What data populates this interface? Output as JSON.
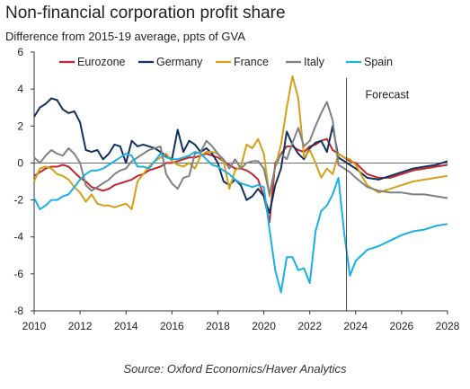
{
  "title": "Non-financial corporation profit share",
  "subtitle": "Difference from 2015-19 average, ppts of GVA",
  "source": "Source: Oxford Economics/Haver Analytics",
  "chart_data": {
    "type": "line",
    "title": "Non-financial corporation profit share",
    "subtitle": "Difference from 2015-19 average, ppts of GVA",
    "xlabel": "",
    "ylabel": "",
    "xlim": [
      2010,
      2028
    ],
    "ylim": [
      -8,
      6
    ],
    "x_ticks": [
      2010,
      2012,
      2014,
      2016,
      2018,
      2020,
      2022,
      2024,
      2026,
      2028
    ],
    "y_ticks": [
      -8,
      -6,
      -4,
      -2,
      0,
      2,
      4,
      6
    ],
    "grid": false,
    "legend_position": "top",
    "annotations": [
      {
        "text": "Forecast",
        "x": 2023.6
      }
    ],
    "series": [
      {
        "name": "Eurozone",
        "color": "#c0282d",
        "x": [
          2010,
          2010.25,
          2010.5,
          2010.75,
          2011,
          2011.25,
          2011.5,
          2011.75,
          2012,
          2012.25,
          2012.5,
          2012.75,
          2013,
          2013.25,
          2013.5,
          2013.75,
          2014,
          2014.25,
          2014.5,
          2014.75,
          2015,
          2015.25,
          2015.5,
          2015.75,
          2016,
          2016.25,
          2016.5,
          2016.75,
          2017,
          2017.25,
          2017.5,
          2017.75,
          2018,
          2018.25,
          2018.5,
          2018.75,
          2019,
          2019.25,
          2019.5,
          2019.75,
          2020,
          2020.25,
          2020.5,
          2020.75,
          2021,
          2021.25,
          2021.5,
          2021.75,
          2022,
          2022.25,
          2022.5,
          2022.75,
          2023,
          2023.25,
          2023.5,
          2023.75,
          2024,
          2024.5,
          2025,
          2025.5,
          2026,
          2026.5,
          2027,
          2027.5,
          2028
        ],
        "values": [
          -0.7,
          -0.5,
          -0.3,
          -0.2,
          -0.2,
          -0.1,
          -0.2,
          -0.5,
          -0.8,
          -1.0,
          -1.3,
          -1.4,
          -1.5,
          -1.4,
          -1.2,
          -1.1,
          -1.0,
          -0.9,
          -0.7,
          -0.6,
          -0.4,
          -0.3,
          -0.2,
          0.0,
          0.0,
          0.1,
          0.2,
          0.3,
          0.3,
          0.4,
          0.5,
          0.4,
          0.3,
          0.1,
          -0.1,
          -0.3,
          -0.3,
          -0.4,
          -0.6,
          -0.9,
          -1.8,
          -3.2,
          0.0,
          0.5,
          0.9,
          0.9,
          0.7,
          0.6,
          0.9,
          1.0,
          1.2,
          1.3,
          0.7,
          0.5,
          0.3,
          0.1,
          0.0,
          -0.6,
          -0.8,
          -0.8,
          -0.6,
          -0.4,
          -0.3,
          -0.2,
          -0.1
        ]
      },
      {
        "name": "Germany",
        "color": "#13305e",
        "x": [
          2010,
          2010.25,
          2010.5,
          2010.75,
          2011,
          2011.25,
          2011.5,
          2011.75,
          2012,
          2012.25,
          2012.5,
          2012.75,
          2013,
          2013.25,
          2013.5,
          2013.75,
          2014,
          2014.25,
          2014.5,
          2014.75,
          2015,
          2015.25,
          2015.5,
          2015.75,
          2016,
          2016.25,
          2016.5,
          2016.75,
          2017,
          2017.25,
          2017.5,
          2017.75,
          2018,
          2018.25,
          2018.5,
          2018.75,
          2019,
          2019.25,
          2019.5,
          2019.75,
          2020,
          2020.25,
          2020.5,
          2020.75,
          2021,
          2021.25,
          2021.5,
          2021.75,
          2022,
          2022.25,
          2022.5,
          2022.75,
          2023,
          2023.25,
          2023.5,
          2023.75,
          2024,
          2024.5,
          2025,
          2025.5,
          2026,
          2026.5,
          2027,
          2027.5,
          2028
        ],
        "values": [
          2.5,
          3.0,
          3.2,
          3.5,
          3.4,
          2.9,
          2.7,
          2.8,
          2.2,
          0.7,
          0.6,
          0.7,
          0.2,
          0.5,
          1.0,
          0.9,
          0.0,
          1.2,
          0.9,
          1.0,
          0.9,
          0.8,
          0.6,
          0.4,
          0.2,
          1.8,
          0.6,
          1.2,
          1.0,
          0.6,
          0.8,
          0.5,
          0.0,
          -1.0,
          -1.2,
          -0.9,
          -1.2,
          -2.0,
          -1.8,
          -1.4,
          -1.8,
          -2.7,
          -1.2,
          -0.3,
          1.7,
          1.0,
          0.5,
          0.2,
          0.8,
          1.1,
          1.2,
          0.6,
          2.0,
          0.3,
          0.1,
          -0.1,
          -0.3,
          -0.8,
          -0.9,
          -0.7,
          -0.5,
          -0.3,
          -0.2,
          -0.1,
          0.1
        ]
      },
      {
        "name": "France",
        "color": "#d4a017",
        "x": [
          2010,
          2010.25,
          2010.5,
          2010.75,
          2011,
          2011.25,
          2011.5,
          2011.75,
          2012,
          2012.25,
          2012.5,
          2012.75,
          2013,
          2013.25,
          2013.5,
          2013.75,
          2014,
          2014.25,
          2014.5,
          2014.75,
          2015,
          2015.25,
          2015.5,
          2015.75,
          2016,
          2016.25,
          2016.5,
          2016.75,
          2017,
          2017.25,
          2017.5,
          2017.75,
          2018,
          2018.25,
          2018.5,
          2018.75,
          2019,
          2019.25,
          2019.5,
          2019.75,
          2020,
          2020.25,
          2020.5,
          2020.75,
          2021,
          2021.25,
          2021.5,
          2021.75,
          2022,
          2022.25,
          2022.5,
          2022.75,
          2023,
          2023.25,
          2023.5,
          2023.75,
          2024,
          2024.5,
          2025,
          2025.5,
          2026,
          2026.5,
          2027,
          2027.5,
          2028
        ],
        "values": [
          -1.0,
          -0.3,
          -0.2,
          -0.3,
          -0.6,
          -0.7,
          -0.9,
          -1.3,
          -1.6,
          -2.1,
          -1.7,
          -2.2,
          -2.3,
          -2.3,
          -2.4,
          -2.3,
          -2.2,
          -2.5,
          -1.0,
          -0.6,
          -0.2,
          0.1,
          0.3,
          0.5,
          0.1,
          -0.1,
          -0.2,
          0.0,
          -0.3,
          0.4,
          0.6,
          0.6,
          0.5,
          0.1,
          -1.4,
          -0.4,
          -0.2,
          1.0,
          0.8,
          1.3,
          0.5,
          -1.8,
          -0.2,
          1.0,
          3.0,
          4.7,
          3.5,
          0.3,
          0.7,
          0.0,
          -0.8,
          -0.3,
          -0.6,
          0.5,
          0.3,
          0.2,
          -0.1,
          -1.2,
          -1.6,
          -1.4,
          -1.2,
          -1.0,
          -0.9,
          -0.8,
          -0.7
        ]
      },
      {
        "name": "Italy",
        "color": "#808080",
        "x": [
          2010,
          2010.25,
          2010.5,
          2010.75,
          2011,
          2011.25,
          2011.5,
          2011.75,
          2012,
          2012.25,
          2012.5,
          2012.75,
          2013,
          2013.25,
          2013.5,
          2013.75,
          2014,
          2014.25,
          2014.5,
          2014.75,
          2015,
          2015.25,
          2015.5,
          2015.75,
          2016,
          2016.25,
          2016.5,
          2016.75,
          2017,
          2017.25,
          2017.5,
          2017.75,
          2018,
          2018.25,
          2018.5,
          2018.75,
          2019,
          2019.25,
          2019.5,
          2019.75,
          2020,
          2020.25,
          2020.5,
          2020.75,
          2021,
          2021.25,
          2021.5,
          2021.75,
          2022,
          2022.25,
          2022.5,
          2022.75,
          2023,
          2023.25,
          2023.5,
          2023.75,
          2024,
          2024.5,
          2025,
          2025.5,
          2026,
          2026.5,
          2027,
          2027.5,
          2028
        ],
        "values": [
          0.3,
          0.0,
          0.4,
          0.7,
          0.5,
          0.4,
          0.8,
          0.5,
          0.0,
          -1.2,
          -1.5,
          -1.3,
          -1.1,
          -0.9,
          -0.6,
          -0.4,
          -0.3,
          0.1,
          0.3,
          0.5,
          0.7,
          0.8,
          0.9,
          -0.6,
          -1.1,
          -1.4,
          -0.8,
          -0.7,
          0.5,
          0.6,
          1.2,
          0.9,
          0.5,
          0.2,
          -0.3,
          0.2,
          -0.3,
          0.0,
          0.1,
          0.1,
          -0.3,
          -1.7,
          -0.2,
          0.5,
          0.2,
          1.1,
          1.9,
          0.9,
          1.2,
          2.0,
          2.7,
          3.3,
          2.3,
          -0.1,
          -0.3,
          -0.5,
          -0.8,
          -1.3,
          -1.5,
          -1.6,
          -1.6,
          -1.7,
          -1.7,
          -1.8,
          -1.9
        ]
      },
      {
        "name": "Spain",
        "color": "#1ab0e6",
        "x": [
          2010,
          2010.25,
          2010.5,
          2010.75,
          2011,
          2011.25,
          2011.5,
          2011.75,
          2012,
          2012.25,
          2012.5,
          2012.75,
          2013,
          2013.25,
          2013.5,
          2013.75,
          2014,
          2014.25,
          2014.5,
          2014.75,
          2015,
          2015.25,
          2015.5,
          2015.75,
          2016,
          2016.25,
          2016.5,
          2016.75,
          2017,
          2017.25,
          2017.5,
          2017.75,
          2018,
          2018.25,
          2018.5,
          2018.75,
          2019,
          2019.25,
          2019.5,
          2019.75,
          2020,
          2020.25,
          2020.5,
          2020.75,
          2021,
          2021.25,
          2021.5,
          2021.75,
          2022,
          2022.25,
          2022.5,
          2022.75,
          2023,
          2023.25,
          2023.5,
          2023.75,
          2024,
          2024.5,
          2025,
          2025.5,
          2026,
          2026.5,
          2027,
          2027.5,
          2028
        ],
        "values": [
          -1.9,
          -2.5,
          -2.3,
          -2.0,
          -2.0,
          -1.8,
          -1.7,
          -1.3,
          -0.9,
          -0.6,
          -0.4,
          -0.4,
          -0.3,
          -0.1,
          0.1,
          0.3,
          0.5,
          0.4,
          -0.2,
          -0.2,
          -0.3,
          0.1,
          0.5,
          0.3,
          0.2,
          0.2,
          0.3,
          0.4,
          0.6,
          0.5,
          0.2,
          -0.1,
          -0.2,
          -0.4,
          -0.6,
          -0.9,
          -1.1,
          -1.2,
          -1.3,
          -1.2,
          -1.3,
          -3.6,
          -5.8,
          -7.0,
          -5.1,
          -5.1,
          -5.8,
          -5.7,
          -6.5,
          -3.7,
          -2.6,
          -2.3,
          -1.7,
          -0.8,
          -3.8,
          -6.1,
          -5.3,
          -4.7,
          -4.5,
          -4.2,
          -3.9,
          -3.7,
          -3.6,
          -3.4,
          -3.3
        ]
      }
    ]
  }
}
